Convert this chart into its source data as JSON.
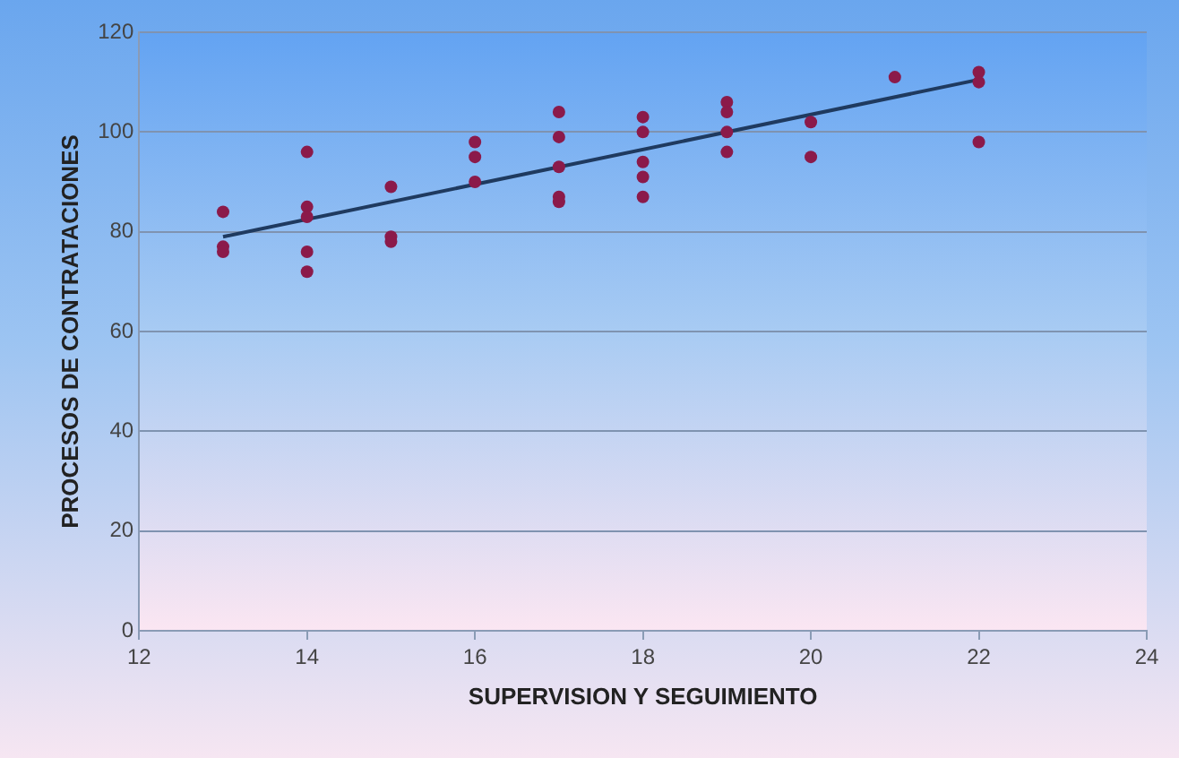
{
  "chart_data": {
    "type": "scatter",
    "xlabel": "SUPERVISION Y SEGUIMIENTO",
    "ylabel": "PROCESOS DE CONTRATACIONES",
    "xlim": [
      12,
      24
    ],
    "xticks": [
      12,
      14,
      16,
      18,
      20,
      22,
      24
    ],
    "ylim": [
      0,
      120
    ],
    "yticks": [
      0,
      20,
      40,
      60,
      80,
      100,
      120
    ],
    "grid": "y",
    "legend": false,
    "marker": "circle",
    "series": [
      {
        "type": "scatter",
        "color": "#8b1a4a",
        "x": [
          13,
          13,
          13,
          14,
          14,
          14,
          14,
          14,
          15,
          15,
          15,
          16,
          16,
          16,
          17,
          17,
          17,
          17,
          17,
          18,
          18,
          18,
          18,
          18,
          19,
          19,
          19,
          19,
          20,
          20,
          21,
          22,
          22,
          22
        ],
        "values": [
          84,
          77,
          76,
          96,
          85,
          83,
          76,
          72,
          89,
          79,
          78,
          98,
          95,
          90,
          104,
          99,
          93,
          87,
          86,
          103,
          100,
          94,
          91,
          87,
          106,
          104,
          100,
          96,
          102,
          95,
          111,
          112,
          110,
          98
        ]
      },
      {
        "type": "line",
        "color": "#1f3a5f",
        "marker": "none",
        "x": [
          13,
          22
        ],
        "values": [
          79,
          110.5
        ]
      }
    ]
  }
}
